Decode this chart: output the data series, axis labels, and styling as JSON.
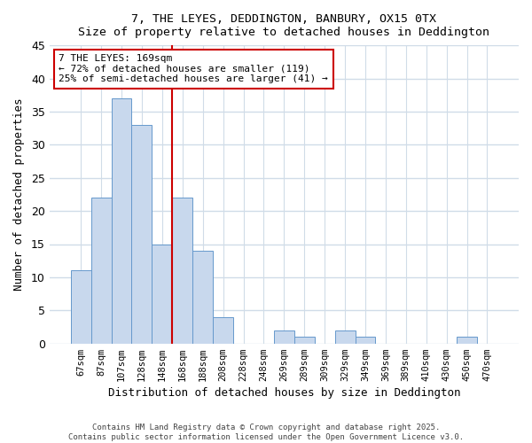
{
  "title1": "7, THE LEYES, DEDDINGTON, BANBURY, OX15 0TX",
  "title2": "Size of property relative to detached houses in Deddington",
  "xlabel": "Distribution of detached houses by size in Deddington",
  "ylabel": "Number of detached properties",
  "bar_labels": [
    "67sqm",
    "87sqm",
    "107sqm",
    "128sqm",
    "148sqm",
    "168sqm",
    "188sqm",
    "208sqm",
    "228sqm",
    "248sqm",
    "269sqm",
    "289sqm",
    "309sqm",
    "329sqm",
    "349sqm",
    "369sqm",
    "389sqm",
    "410sqm",
    "430sqm",
    "450sqm",
    "470sqm"
  ],
  "bar_values": [
    11,
    22,
    37,
    33,
    15,
    22,
    14,
    4,
    0,
    0,
    2,
    1,
    0,
    2,
    1,
    0,
    0,
    0,
    0,
    1,
    0
  ],
  "bar_color": "#c8d8ed",
  "bar_edgecolor": "#6699cc",
  "vline_index": 5,
  "vline_color": "#cc0000",
  "annotation_text": "7 THE LEYES: 169sqm\n← 72% of detached houses are smaller (119)\n25% of semi-detached houses are larger (41) →",
  "annotation_box_edgecolor": "#cc0000",
  "annotation_box_facecolor": "#ffffff",
  "ylim": [
    0,
    45
  ],
  "yticks": [
    0,
    5,
    10,
    15,
    20,
    25,
    30,
    35,
    40,
    45
  ],
  "footer1": "Contains HM Land Registry data © Crown copyright and database right 2025.",
  "footer2": "Contains public sector information licensed under the Open Government Licence v3.0.",
  "bg_color": "#ffffff",
  "plot_bg_color": "#ffffff",
  "grid_color": "#d0dce8"
}
